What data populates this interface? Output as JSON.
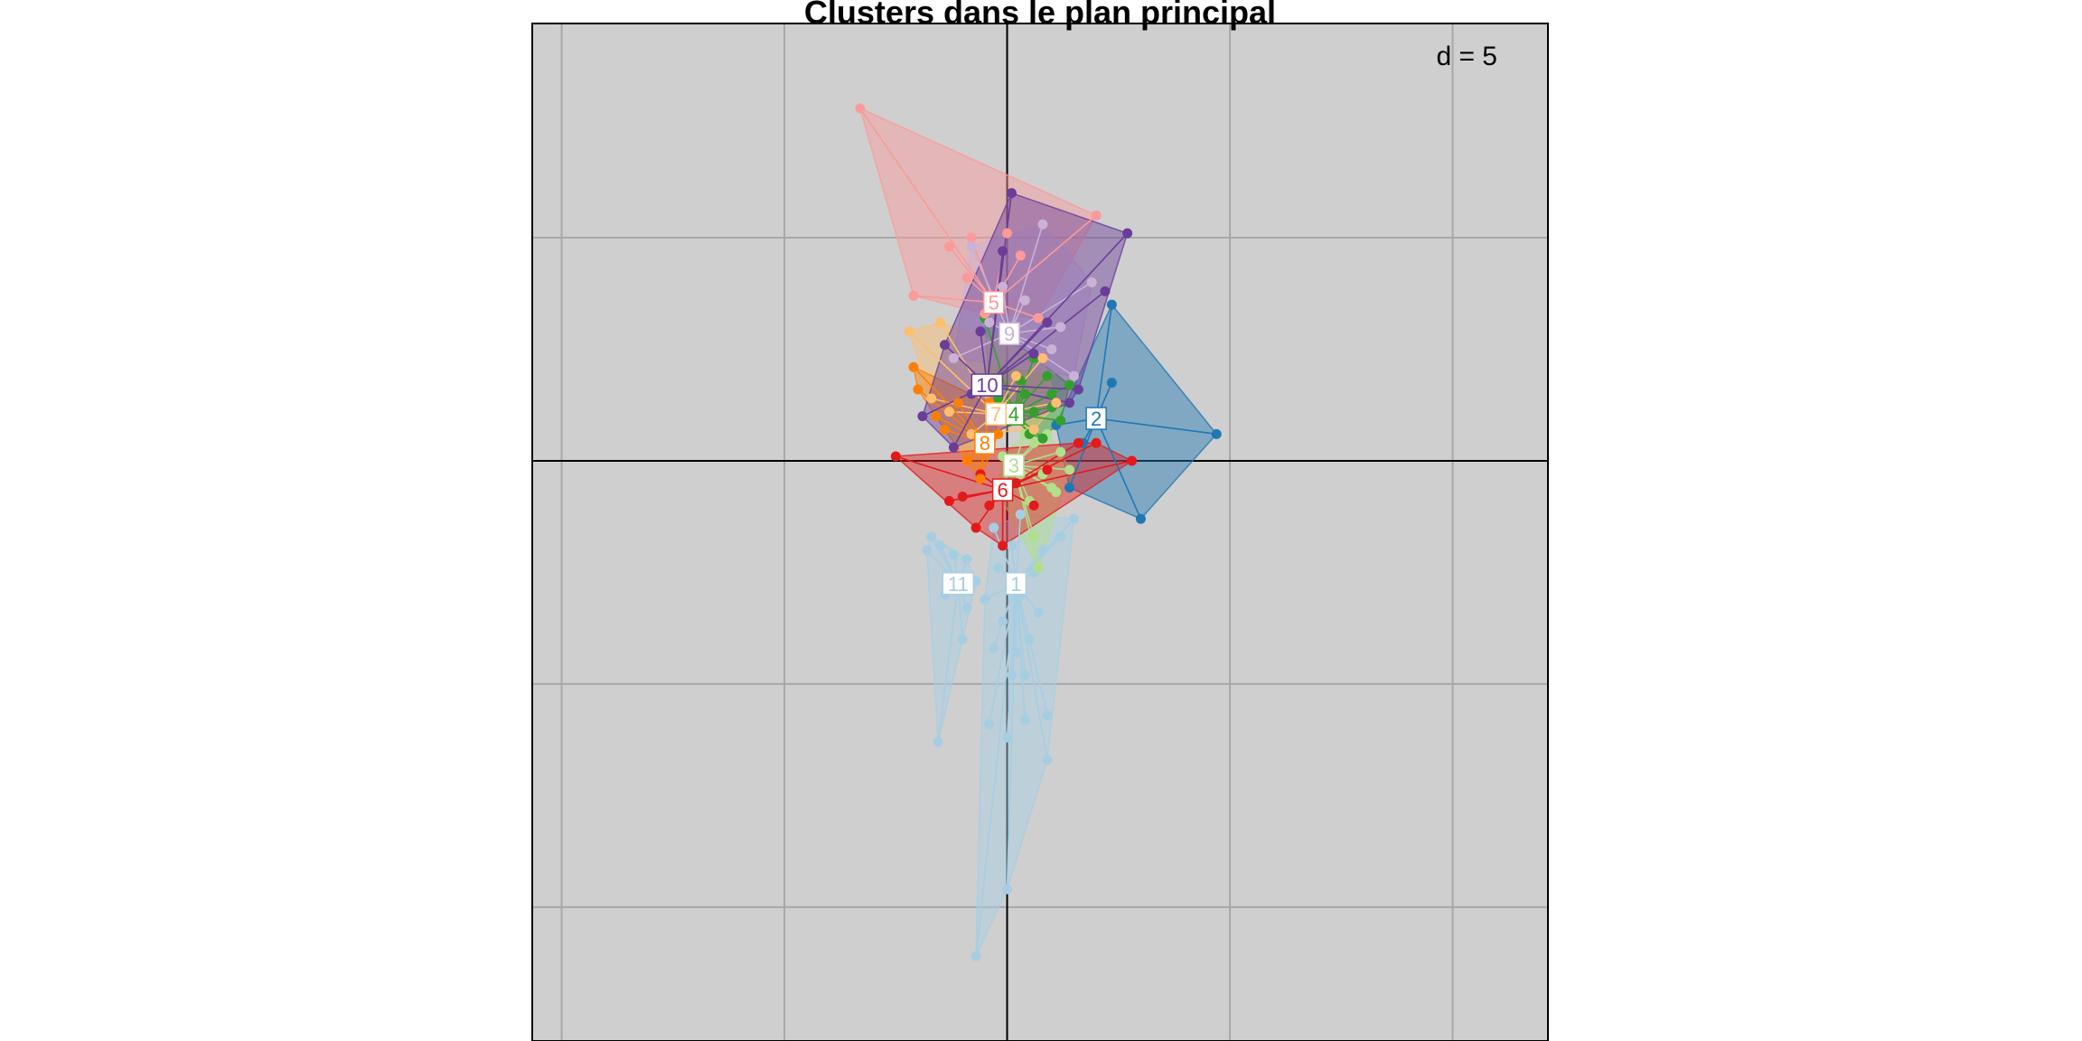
{
  "chart_data": {
    "type": "scatter",
    "title": "Clusters dans le plan principal",
    "grid_label": "d = 5",
    "grid": true,
    "xlim": [
      -10.66,
      12.14
    ],
    "ylim": [
      -13,
      9.8
    ],
    "grid_step": 5,
    "background": "#cfcfcf",
    "clusters": [
      {
        "id": "1",
        "color": "#a6cee3",
        "label_pos": [
          0.2,
          -2.75
        ],
        "points": [
          [
            -0.7,
            -11.1
          ],
          [
            0,
            -9.6
          ],
          [
            0.9,
            -6.7
          ],
          [
            0.9,
            -5.7
          ],
          [
            -0.4,
            -5.9
          ],
          [
            0.4,
            -5.8
          ],
          [
            0,
            -6.2
          ],
          [
            0.4,
            -4.8
          ],
          [
            0.1,
            -4.8
          ],
          [
            0.7,
            -3.4
          ],
          [
            -0.5,
            -3.1
          ],
          [
            0.6,
            -2.5
          ],
          [
            -0.2,
            -2.4
          ],
          [
            0.8,
            -2.0
          ],
          [
            1.2,
            -1.7
          ],
          [
            1.5,
            -1.3
          ],
          [
            -0.3,
            -1.5
          ],
          [
            0.3,
            -1.2
          ],
          [
            0.1,
            -1.9
          ],
          [
            -0.1,
            -3.6
          ],
          [
            0.2,
            -4.3
          ],
          [
            -0.3,
            -4.2
          ],
          [
            0.5,
            -4.0
          ],
          [
            0.3,
            -3.0
          ]
        ]
      },
      {
        "id": "2",
        "color": "#1f78b4",
        "label_pos": [
          2.0,
          0.95
        ],
        "points": [
          [
            4.7,
            0.6
          ],
          [
            3.0,
            -1.3
          ],
          [
            2.35,
            3.5
          ],
          [
            2.35,
            1.75
          ],
          [
            1.1,
            0.8
          ],
          [
            1.7,
            0.4
          ],
          [
            1.4,
            -0.6
          ]
        ]
      },
      {
        "id": "3",
        "color": "#b2df8a",
        "label_pos": [
          0.15,
          -0.1
        ],
        "points": [
          [
            0.6,
            0.4
          ],
          [
            1.2,
            0.2
          ],
          [
            1.0,
            -0.6
          ],
          [
            0.5,
            -0.9
          ],
          [
            0.6,
            -1.7
          ],
          [
            0.7,
            -2.4
          ],
          [
            -0.2,
            -0.7
          ],
          [
            0.3,
            -0.3
          ],
          [
            0.9,
            0.6
          ],
          [
            1.4,
            -0.2
          ],
          [
            0.4,
            0.6
          ],
          [
            -0.1,
            0.1
          ],
          [
            0.8,
            -0.3
          ],
          [
            1.1,
            -0.7
          ]
        ]
      },
      {
        "id": "4",
        "color": "#33a02c",
        "label_pos": [
          0.15,
          1.05
        ],
        "points": [
          [
            0.6,
            2.3
          ],
          [
            0.4,
            1.5
          ],
          [
            1.0,
            1.2
          ],
          [
            1.4,
            1.7
          ],
          [
            0.3,
            0.9
          ],
          [
            0.8,
            0.5
          ],
          [
            -0.4,
            1.6
          ],
          [
            0.9,
            1.9
          ],
          [
            1.2,
            0.9
          ],
          [
            -0.5,
            3.2
          ],
          [
            0.3,
            1.8
          ],
          [
            0.6,
            1.1
          ],
          [
            -0.2,
            1.4
          ],
          [
            0.5,
            0.6
          ],
          [
            1.0,
            1.5
          ]
        ]
      },
      {
        "id": "5",
        "color": "#fb9a99",
        "label_pos": [
          -0.3,
          3.55
        ],
        "points": [
          [
            -3.3,
            7.9
          ],
          [
            2.0,
            5.5
          ],
          [
            -1.3,
            4.8
          ],
          [
            -2.1,
            3.7
          ],
          [
            -0.8,
            5.0
          ],
          [
            0.3,
            4.6
          ],
          [
            0.7,
            3.2
          ],
          [
            -0.5,
            3.3
          ],
          [
            -0.9,
            4.1
          ],
          [
            0.0,
            5.1
          ]
        ]
      },
      {
        "id": "6",
        "color": "#e31a1c",
        "label_pos": [
          -0.1,
          -0.65
        ],
        "points": [
          [
            -2.5,
            0.1
          ],
          [
            -1.3,
            -0.9
          ],
          [
            -0.7,
            -1.5
          ],
          [
            -0.1,
            -1.9
          ],
          [
            0.6,
            -1.0
          ],
          [
            2.0,
            0.4
          ],
          [
            2.8,
            0.0
          ],
          [
            1.6,
            0.4
          ],
          [
            -0.6,
            -0.3
          ],
          [
            -1.0,
            -0.8
          ],
          [
            0.2,
            -0.5
          ],
          [
            -0.4,
            -1.0
          ],
          [
            0.9,
            -0.2
          ]
        ]
      },
      {
        "id": "7",
        "color": "#fdbf6f",
        "label_pos": [
          -0.25,
          1.05
        ],
        "points": [
          [
            -2.2,
            2.9
          ],
          [
            -1.5,
            3.1
          ],
          [
            -0.5,
            1.6
          ],
          [
            -1.3,
            1.1
          ],
          [
            -0.8,
            0.6
          ],
          [
            0.8,
            2.3
          ],
          [
            1.1,
            1.3
          ],
          [
            -1.7,
            1.4
          ],
          [
            0.2,
            1.9
          ],
          [
            -0.2,
            0.9
          ],
          [
            0.6,
            0.7
          ]
        ]
      },
      {
        "id": "8",
        "color": "#ff7f00",
        "label_pos": [
          -0.5,
          0.4
        ],
        "points": [
          [
            -2.1,
            2.1
          ],
          [
            -2.0,
            1.6
          ],
          [
            -1.4,
            0.7
          ],
          [
            -0.9,
            0.0
          ],
          [
            -0.6,
            -0.4
          ],
          [
            -0.2,
            0.6
          ],
          [
            -1.1,
            1.3
          ],
          [
            -1.6,
            1.0
          ],
          [
            -0.4,
            1.3
          ]
        ]
      },
      {
        "id": "9",
        "color": "#cab2d6",
        "label_pos": [
          0.05,
          2.85
        ],
        "points": [
          [
            0.8,
            5.3
          ],
          [
            1.9,
            4.0
          ],
          [
            1.5,
            1.9
          ],
          [
            -0.8,
            4.8
          ],
          [
            -0.4,
            3.1
          ],
          [
            0.4,
            3.6
          ],
          [
            1.0,
            2.5
          ],
          [
            -1.2,
            2.3
          ],
          [
            -0.1,
            3.9
          ],
          [
            1.2,
            3.0
          ]
        ]
      },
      {
        "id": "10",
        "color": "#6a3d9a",
        "label_pos": [
          -0.45,
          1.7
        ],
        "points": [
          [
            0.1,
            6.0
          ],
          [
            2.7,
            5.1
          ],
          [
            2.2,
            3.8
          ],
          [
            1.4,
            1.3
          ],
          [
            -1.9,
            1.0
          ],
          [
            -1.4,
            2.6
          ],
          [
            -0.6,
            2.9
          ],
          [
            0.9,
            3.1
          ],
          [
            -0.8,
            1.5
          ],
          [
            -0.1,
            4.7
          ],
          [
            0.6,
            2.4
          ],
          [
            1.6,
            1.6
          ],
          [
            -1.2,
            0.3
          ]
        ]
      },
      {
        "id": "11",
        "color": "#a6cee3",
        "label_pos": [
          -1.1,
          -2.75
        ],
        "points": [
          [
            -1.55,
            -6.3
          ],
          [
            -1.7,
            -1.7
          ],
          [
            -1.5,
            -1.9
          ],
          [
            -1.2,
            -2.1
          ],
          [
            -0.9,
            -2.2
          ],
          [
            -1.4,
            -3.0
          ],
          [
            -0.9,
            -3.3
          ],
          [
            -1.8,
            -2.0
          ],
          [
            -1.0,
            -4.0
          ],
          [
            -0.7,
            -2.7
          ]
        ]
      }
    ]
  }
}
